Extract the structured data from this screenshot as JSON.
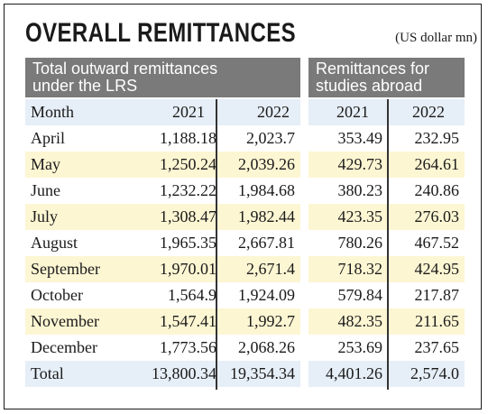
{
  "title": "OVERALL REMITTANCES",
  "unit": "(US dollar mn)",
  "headers": {
    "left_line1": "Total outward remittances",
    "left_line2": "under the LRS",
    "right_line1": "Remittances for",
    "right_line2": "studies abroad"
  },
  "columns": [
    "Month",
    "2021",
    "2022",
    "2021",
    "2022"
  ],
  "rows": [
    {
      "month": "April",
      "lrs_2021": "1,188.18",
      "lrs_2022": "2,023.7",
      "study_2021": "353.49",
      "study_2022": "232.95"
    },
    {
      "month": "May",
      "lrs_2021": "1,250.24",
      "lrs_2022": "2,039.26",
      "study_2021": "429.73",
      "study_2022": "264.61"
    },
    {
      "month": "June",
      "lrs_2021": "1,232.22",
      "lrs_2022": "1,984.68",
      "study_2021": "380.23",
      "study_2022": "240.86"
    },
    {
      "month": "July",
      "lrs_2021": "1,308.47",
      "lrs_2022": "1,982.44",
      "study_2021": "423.35",
      "study_2022": "276.03"
    },
    {
      "month": "August",
      "lrs_2021": "1,965.35",
      "lrs_2022": "2,667.81",
      "study_2021": "780.26",
      "study_2022": "467.52"
    },
    {
      "month": "September",
      "lrs_2021": "1,970.01",
      "lrs_2022": "2,671.4",
      "study_2021": "718.32",
      "study_2022": "424.95"
    },
    {
      "month": "October",
      "lrs_2021": "1,564.9",
      "lrs_2022": "1,924.09",
      "study_2021": "579.84",
      "study_2022": "217.87"
    },
    {
      "month": "November",
      "lrs_2021": "1,547.41",
      "lrs_2022": "1,992.7",
      "study_2021": "482.35",
      "study_2022": "211.65"
    },
    {
      "month": "December",
      "lrs_2021": "1,773.56",
      "lrs_2022": "2,068.26",
      "study_2021": "253.69",
      "study_2022": "237.65"
    },
    {
      "month": "Total",
      "lrs_2021": "13,800.34",
      "lrs_2022": "19,354.34",
      "study_2021": "4,401.26",
      "study_2022": "2,574.0"
    }
  ],
  "colors": {
    "header_bg": "#7a7a7a",
    "row_blue": "#e6eef7",
    "row_yellow": "#fdf6d3"
  }
}
